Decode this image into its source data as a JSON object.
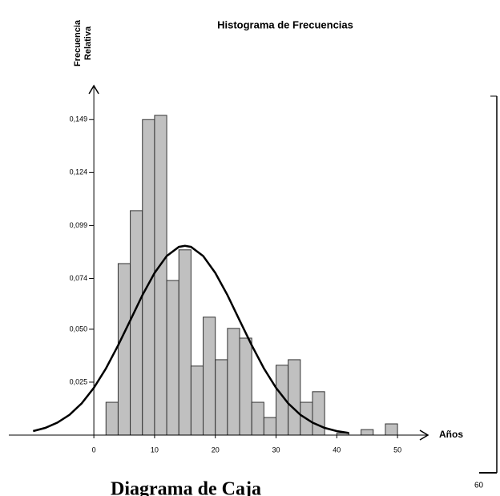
{
  "chart_data": {
    "type": "histogram",
    "title": "Histograma de Frecuencias",
    "y_label": [
      "Frecuencia",
      "Relativa"
    ],
    "x_label": "Años",
    "bins": [
      2,
      4,
      6,
      8,
      10,
      12,
      14,
      16,
      18,
      20,
      22,
      24,
      26,
      28,
      30,
      32,
      34,
      36,
      38,
      40,
      42,
      44,
      46,
      48,
      50
    ],
    "values": [
      0.0155,
      0.081,
      0.106,
      0.149,
      0.151,
      0.073,
      0.0875,
      0.0326,
      0.0557,
      0.0356,
      0.0504,
      0.0458,
      0.0155,
      0.0083,
      0.033,
      0.0356,
      0.0155,
      0.0205,
      0,
      0.001,
      0,
      0.0026,
      0,
      0.0053
    ],
    "color": "#c0c0c0",
    "curve": {
      "x": [
        -10,
        -8,
        -6,
        -4,
        -2,
        0,
        2,
        4,
        6,
        8,
        10,
        12,
        14,
        15,
        16,
        18,
        20,
        22,
        24,
        26,
        28,
        30,
        32,
        34,
        36,
        38,
        40,
        42
      ],
      "values": [
        0.0019,
        0.0034,
        0.0059,
        0.0096,
        0.015,
        0.0223,
        0.0315,
        0.0424,
        0.0542,
        0.0661,
        0.0766,
        0.0846,
        0.0889,
        0.0894,
        0.0889,
        0.0846,
        0.0766,
        0.0661,
        0.0542,
        0.0424,
        0.0315,
        0.0223,
        0.015,
        0.0096,
        0.0059,
        0.0034,
        0.0019,
        0.001
      ],
      "color": "#000000"
    },
    "xlim": [
      -14,
      55
    ],
    "ylim": [
      0,
      0.165
    ],
    "xticks": [
      0,
      10,
      20,
      30,
      40,
      50
    ],
    "yticks": [
      {
        "value": 0.025,
        "label": "0,025"
      },
      {
        "value": 0.05,
        "label": "0,050"
      },
      {
        "value": 0.074,
        "label": "0,074"
      },
      {
        "value": 0.099,
        "label": "0,099"
      },
      {
        "value": 0.124,
        "label": "0,124"
      },
      {
        "value": 0.149,
        "label": "0,149"
      }
    ]
  },
  "caption": "Diagrama de Caja",
  "side_label": "60"
}
